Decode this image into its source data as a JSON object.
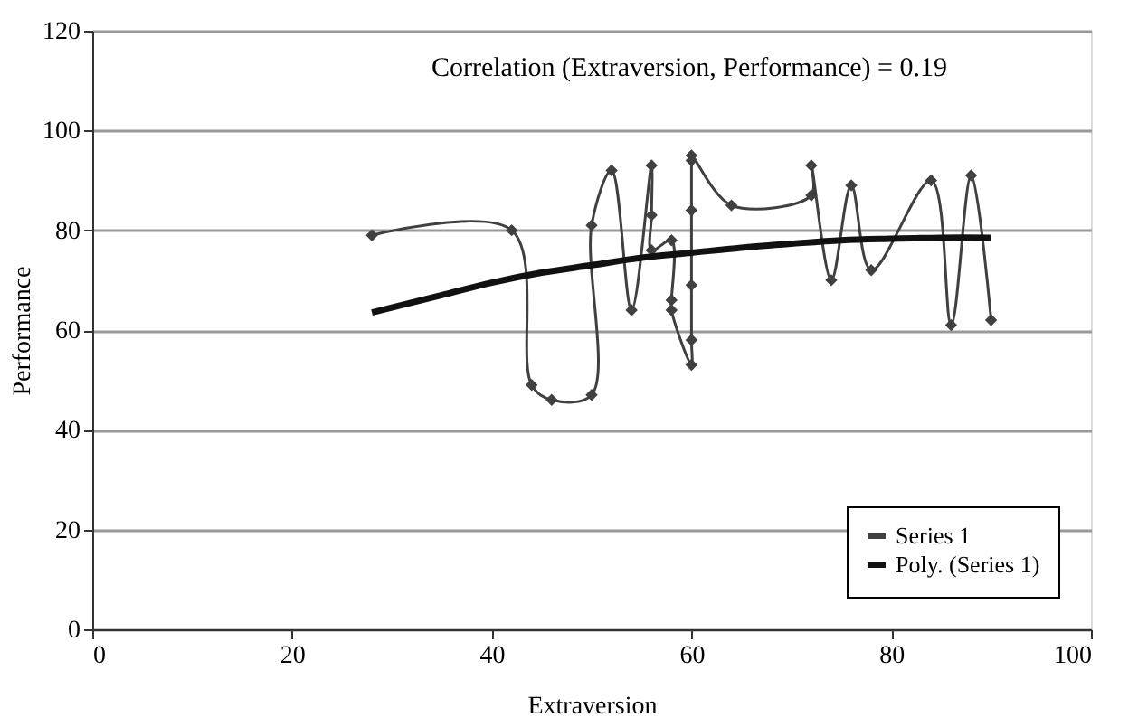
{
  "chart_data": {
    "type": "line",
    "xlabel": "Extraversion",
    "ylabel": "Performance",
    "annotations": [
      "Correlation (Extraversion, Performance) = 0.19"
    ],
    "xlim": [
      0,
      100
    ],
    "xticks": [
      0,
      20,
      40,
      60,
      80,
      100
    ],
    "ylim": [
      0,
      120
    ],
    "yticks": [
      0,
      20,
      40,
      60,
      80,
      100,
      120
    ],
    "grid": "y",
    "legend": "bottom right",
    "series": [
      {
        "name": "Series 1",
        "color": "#404040",
        "marker": "diamond",
        "line_style": "solid",
        "x": [
          28,
          42,
          44,
          46,
          50,
          50,
          52,
          54,
          56,
          56,
          56,
          58,
          58,
          58,
          60,
          60,
          60,
          60,
          60,
          60,
          64,
          72,
          72,
          74,
          76,
          78,
          84,
          86,
          88,
          90
        ],
        "values": [
          79,
          80,
          49,
          46,
          47,
          81,
          92,
          64,
          93,
          83,
          76,
          78,
          66,
          64,
          53,
          58,
          69,
          84,
          94,
          95,
          85,
          87,
          93,
          70,
          89,
          72,
          90,
          61,
          91,
          62
        ]
      },
      {
        "name": "Poly. (Series 1)",
        "color": "#111111",
        "marker": "none",
        "line_style": "solid",
        "x": [
          28,
          35,
          40,
          45,
          50,
          55,
          60,
          65,
          70,
          75,
          80,
          85,
          90
        ],
        "values": [
          63.5,
          67,
          69.5,
          71.5,
          73,
          74.5,
          75.5,
          76.5,
          77.3,
          78,
          78.3,
          78.5,
          78.5
        ]
      }
    ]
  }
}
